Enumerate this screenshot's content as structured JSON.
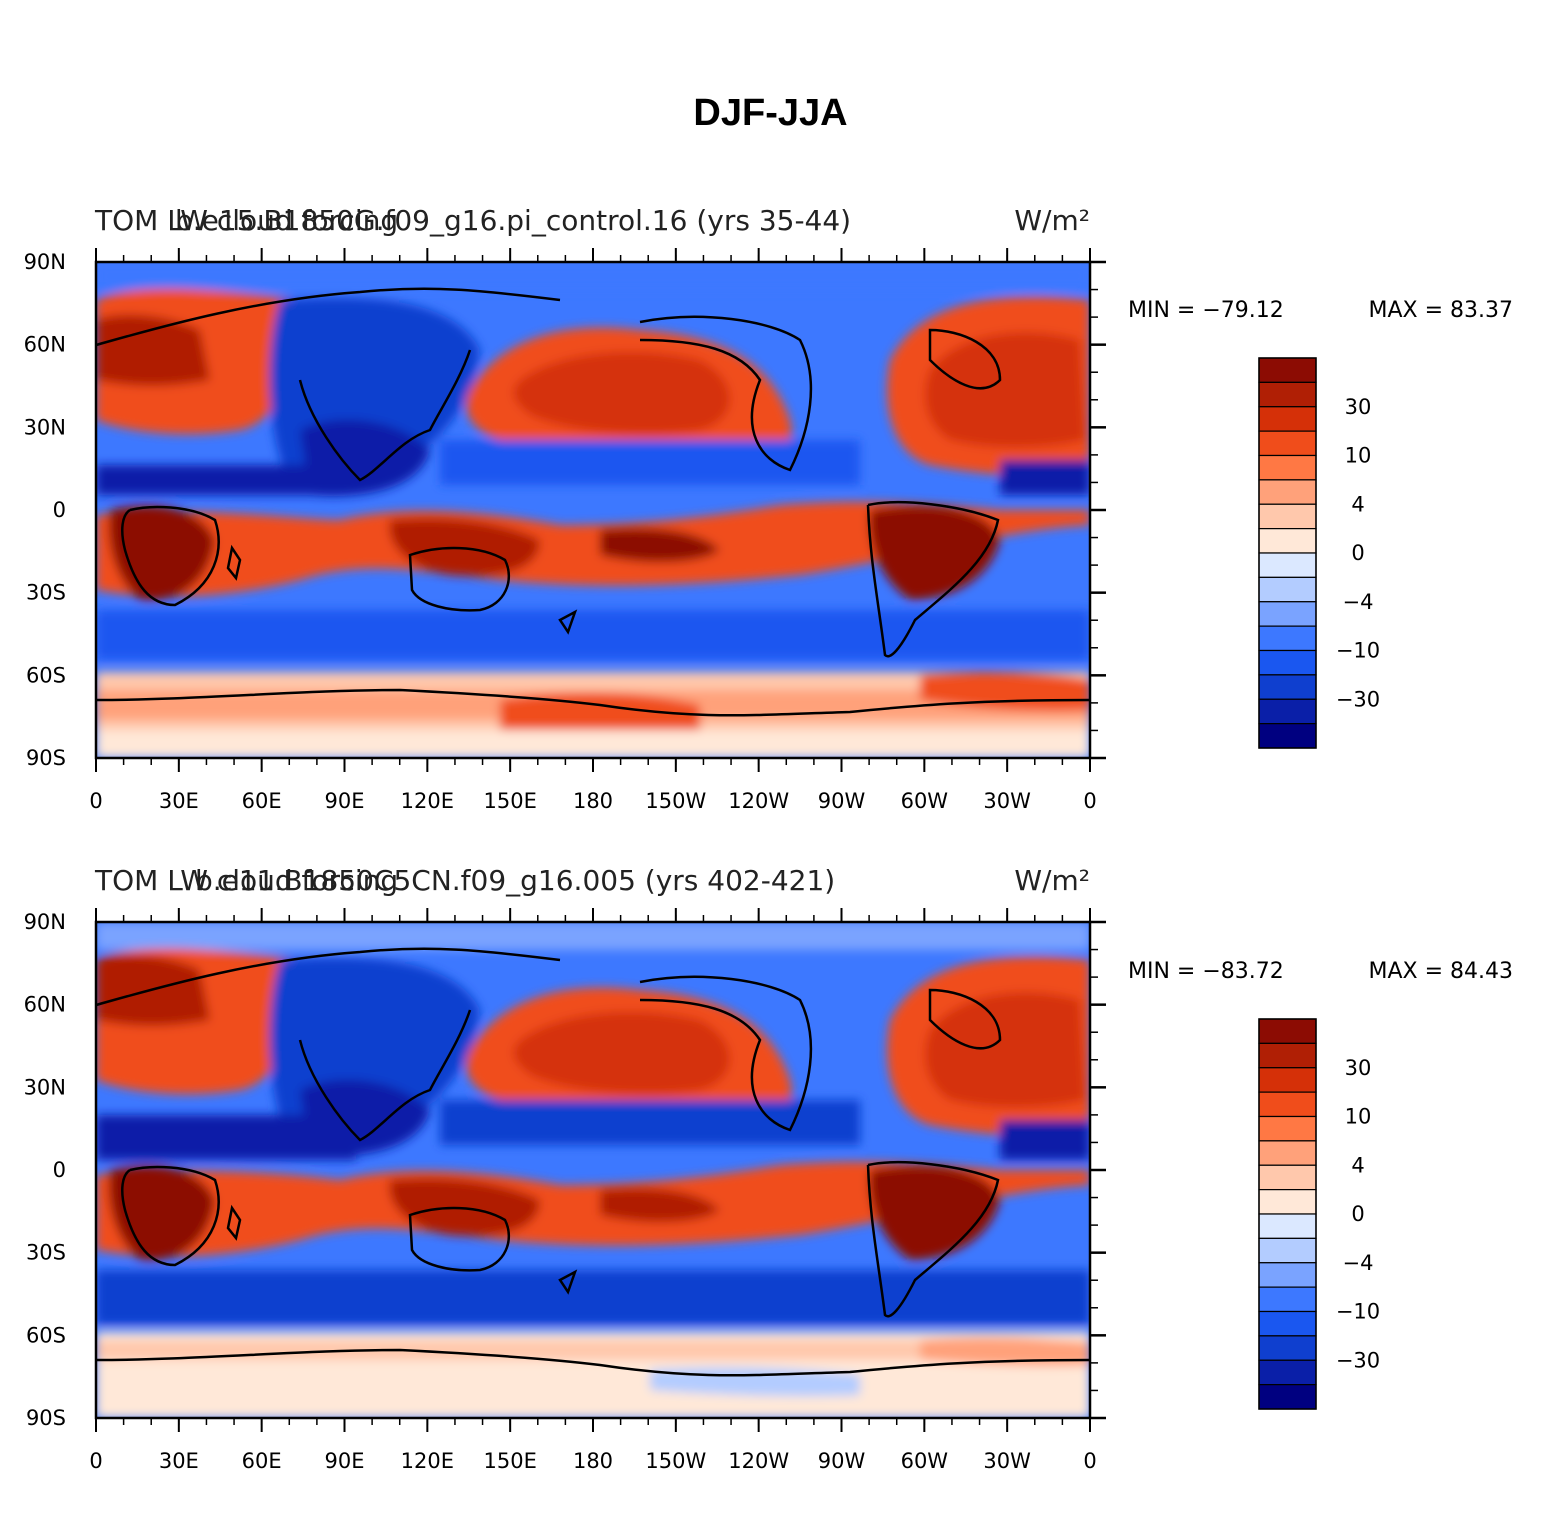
{
  "title": "DJF-JJA",
  "colors": [
    "#000080",
    "#0a1fa8",
    "#0f3fcf",
    "#1a57f0",
    "#3d78ff",
    "#7aa3ff",
    "#b3ccff",
    "#dbe8ff",
    "#ffe8d8",
    "#ffc8ac",
    "#ffa17a",
    "#ff7844",
    "#f04d1b",
    "#d53008",
    "#b01f05",
    "#8c0c03"
  ],
  "colorbar_labels": [
    "30",
    "10",
    "4",
    "0",
    "−4",
    "−10",
    "−30"
  ],
  "lon_ticks": [
    "0",
    "30E",
    "60E",
    "90E",
    "120E",
    "150E",
    "180",
    "150W",
    "120W",
    "90W",
    "60W",
    "30W",
    "0"
  ],
  "lat_ticks": [
    "90N",
    "60N",
    "30N",
    "0",
    "30S",
    "60S",
    "90S"
  ],
  "panels": [
    {
      "left_label": "TOM LW cloud forcing",
      "center_label": "b.e15.B1850G.f09_g16.pi_control.16 (yrs 35-44)",
      "units": "W/m²",
      "min_text": "MIN = −79.12",
      "max_text": "MAX =   83.37"
    },
    {
      "left_label": "TOM LW cloud forcing",
      "center_label": "b.e11.B1850C5CN.f09_g16.005 (yrs 402-421)",
      "units": "W/m²",
      "min_text": "MIN = −83.72",
      "max_text": "MAX =   84.43"
    }
  ]
}
